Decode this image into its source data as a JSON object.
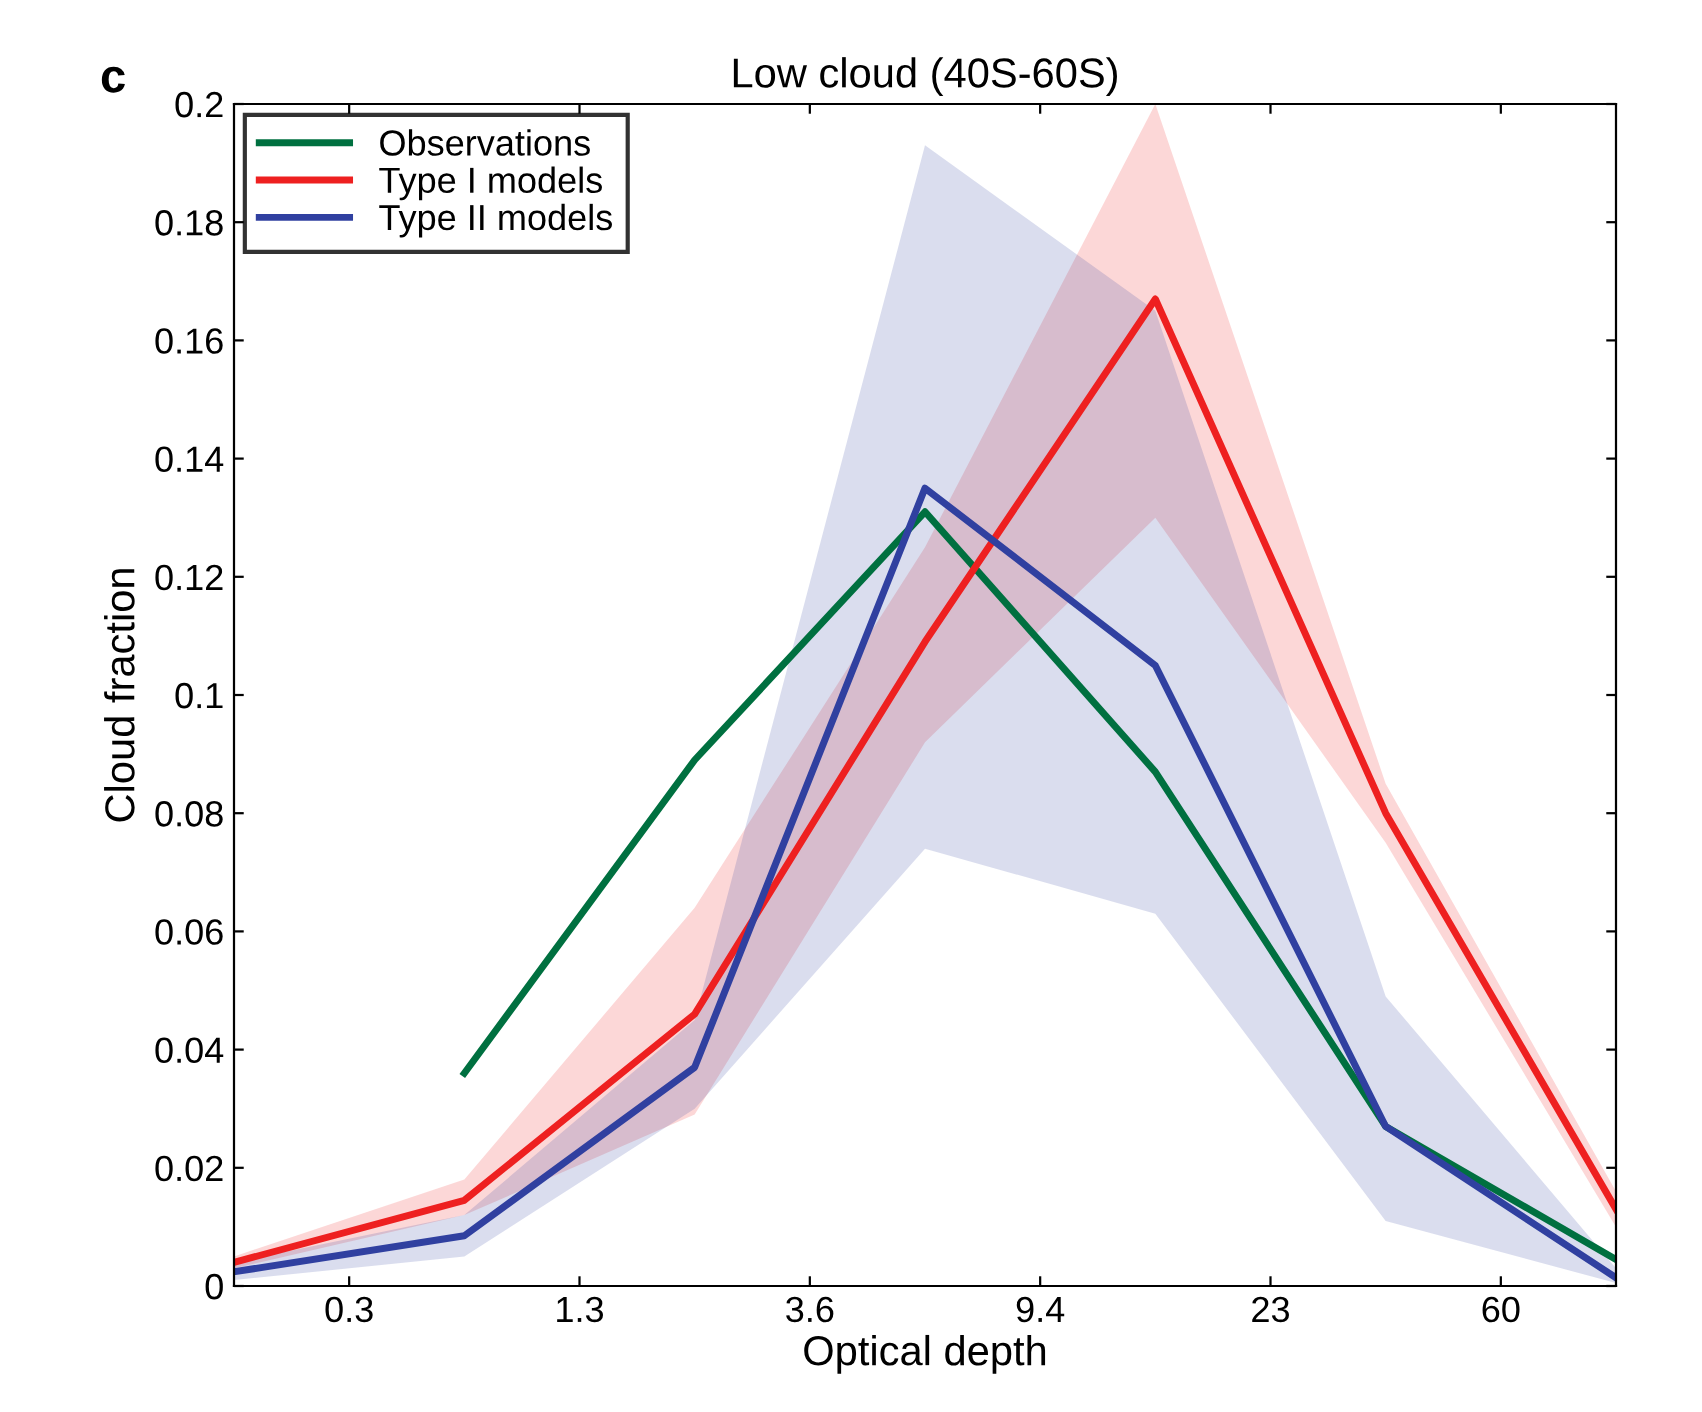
{
  "chart_data": {
    "type": "line",
    "title": "Low cloud (40S-60S)",
    "xlabel": "Optical depth",
    "ylabel": "Cloud fraction",
    "annotations": [
      "c"
    ],
    "categories": [
      null,
      "0.3",
      null,
      "1.3",
      null,
      "3.6",
      null,
      "9.4",
      null,
      "23",
      null,
      "60",
      null
    ],
    "ylim": [
      0,
      0.2
    ],
    "yticks": [
      0,
      0.02,
      0.04,
      0.06,
      0.08,
      0.1,
      0.12,
      0.14,
      0.16,
      0.18,
      0.2
    ],
    "grid": false,
    "legend": "top left",
    "line_style": "solid",
    "series": [
      {
        "name": "Observations",
        "color": "#007040",
        "values": [
          null,
          null,
          0.036,
          null,
          0.089,
          null,
          0.131,
          null,
          0.087,
          null,
          0.027,
          null,
          0.0045
        ]
      },
      {
        "name": "Type I models",
        "color": "#ee2020",
        "values": [
          0.004,
          null,
          0.0145,
          null,
          0.046,
          null,
          0.109,
          null,
          0.167,
          null,
          0.08,
          null,
          0.013
        ],
        "lower": [
          0.003,
          null,
          0.012,
          null,
          0.029,
          null,
          0.092,
          null,
          0.13,
          null,
          0.075,
          null,
          0.01
        ],
        "upper": [
          0.005,
          null,
          0.018,
          null,
          0.064,
          null,
          0.125,
          null,
          0.2,
          null,
          0.085,
          null,
          0.016
        ]
      },
      {
        "name": "Type II models",
        "color": "#3040a0",
        "values": [
          0.0024,
          null,
          0.0085,
          null,
          0.037,
          null,
          0.135,
          null,
          0.105,
          null,
          0.027,
          null,
          0.0014
        ],
        "lower": [
          0.001,
          null,
          0.005,
          null,
          0.03,
          null,
          0.074,
          null,
          0.063,
          null,
          0.011,
          null,
          0.0005
        ],
        "upper": [
          0.004,
          null,
          0.012,
          null,
          0.045,
          null,
          0.193,
          null,
          0.165,
          null,
          0.049,
          null,
          0.003
        ]
      }
    ]
  }
}
